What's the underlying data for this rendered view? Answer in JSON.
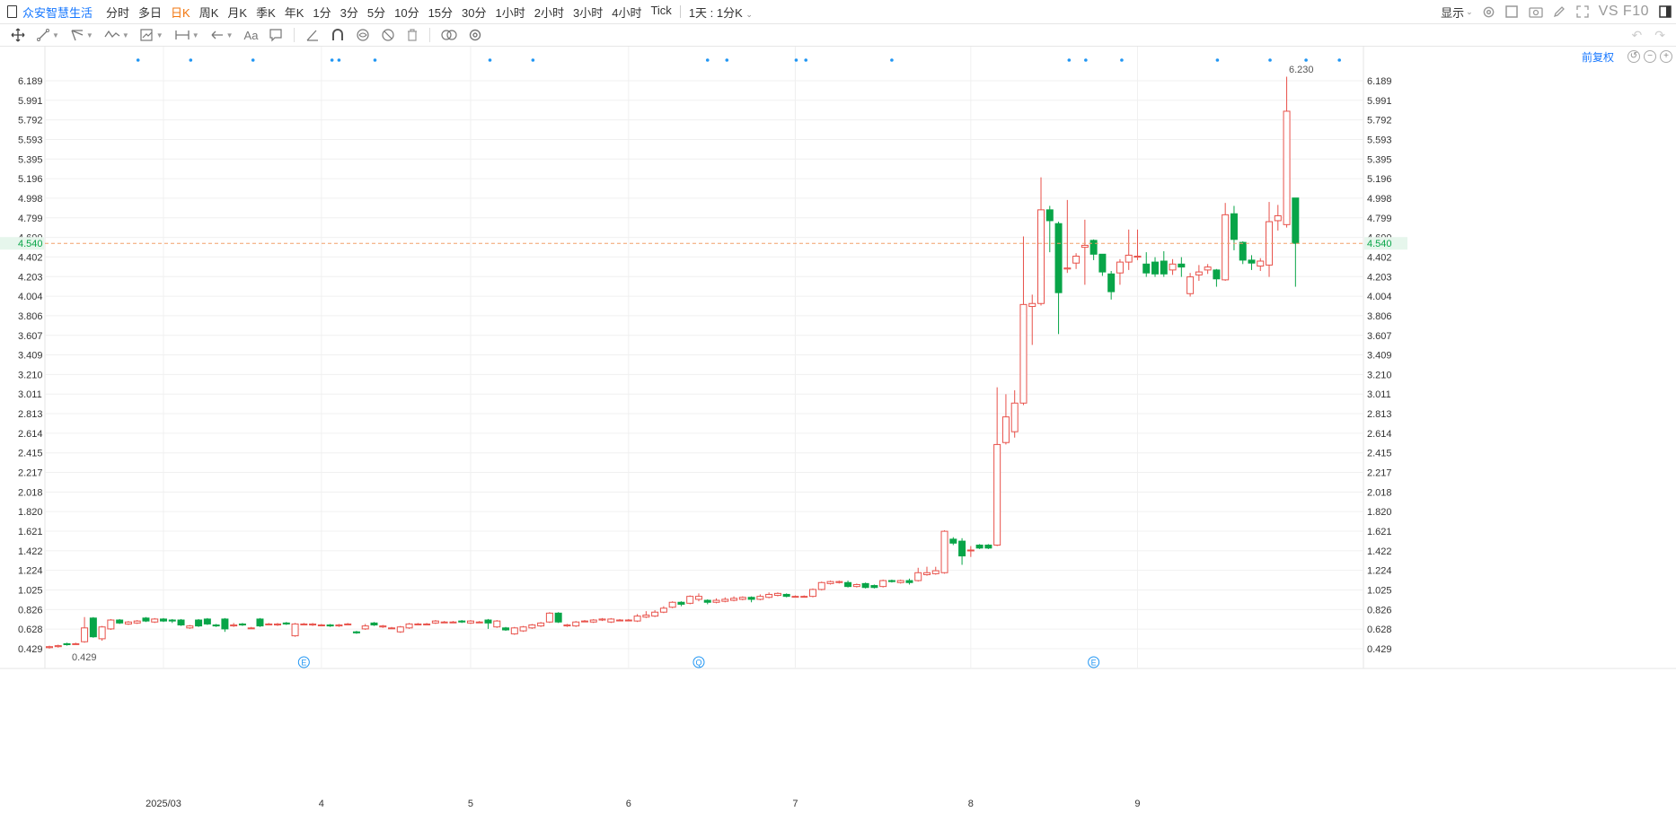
{
  "toolbar": {
    "stock_name": "众安智慧生活",
    "periods": [
      "分时",
      "多日",
      "日K",
      "周K",
      "月K",
      "季K",
      "年K",
      "1分",
      "3分",
      "5分",
      "10分",
      "15分",
      "30分",
      "1小时",
      "2小时",
      "3小时",
      "4小时",
      "Tick"
    ],
    "active_period": "日K",
    "custom_period": "1天 : 1分K",
    "display_label": "显示",
    "vs_label": "VS F10"
  },
  "chart_header": {
    "adjust_label": "前复权"
  },
  "colors": {
    "up": "#e8514a",
    "down": "#08a548",
    "current_price_line": "#f2a06a",
    "current_price_bg": "#e6f6ec",
    "current_price_text": "#08a548",
    "marker": "#2196f3"
  },
  "chart_data": {
    "type": "candlestick",
    "current_price": "4.540",
    "max_label": "6.230",
    "min_label": "0.429",
    "y_ticks": [
      "6.189",
      "5.991",
      "5.792",
      "5.593",
      "5.395",
      "5.196",
      "4.998",
      "4.799",
      "4.600",
      "4.402",
      "4.203",
      "4.004",
      "3.806",
      "3.607",
      "3.409",
      "3.210",
      "3.011",
      "2.813",
      "2.614",
      "2.415",
      "2.217",
      "2.018",
      "1.820",
      "1.621",
      "1.422",
      "1.224",
      "1.025",
      "0.826",
      "0.628",
      "0.429"
    ],
    "ylim": [
      0.38,
      6.42
    ],
    "x_labels": [
      {
        "label": "2025/03",
        "index": 13
      },
      {
        "label": "4",
        "index": 31
      },
      {
        "label": "5",
        "index": 48
      },
      {
        "label": "6",
        "index": 66
      },
      {
        "label": "7",
        "index": 85
      },
      {
        "label": "8",
        "index": 105
      },
      {
        "label": "9",
        "index": 124
      }
    ],
    "event_markers": [
      {
        "index": 29,
        "label": "E"
      },
      {
        "index": 74,
        "label": "Q"
      },
      {
        "index": 119,
        "label": "E"
      }
    ],
    "candles": [
      [
        0.44,
        0.45,
        0.43,
        0.46
      ],
      [
        0.45,
        0.46,
        0.44,
        0.47
      ],
      [
        0.48,
        0.47,
        0.46,
        0.49
      ],
      [
        0.48,
        0.48,
        0.47,
        0.49
      ],
      [
        0.5,
        0.64,
        0.49,
        0.75
      ],
      [
        0.74,
        0.55,
        0.54,
        0.75
      ],
      [
        0.53,
        0.65,
        0.51,
        0.66
      ],
      [
        0.63,
        0.72,
        0.62,
        0.73
      ],
      [
        0.72,
        0.69,
        0.68,
        0.73
      ],
      [
        0.68,
        0.7,
        0.67,
        0.71
      ],
      [
        0.69,
        0.71,
        0.68,
        0.72
      ],
      [
        0.74,
        0.71,
        0.7,
        0.75
      ],
      [
        0.7,
        0.73,
        0.69,
        0.74
      ],
      [
        0.73,
        0.71,
        0.7,
        0.74
      ],
      [
        0.72,
        0.71,
        0.69,
        0.73
      ],
      [
        0.72,
        0.67,
        0.66,
        0.73
      ],
      [
        0.64,
        0.66,
        0.63,
        0.67
      ],
      [
        0.72,
        0.66,
        0.65,
        0.73
      ],
      [
        0.73,
        0.68,
        0.67,
        0.74
      ],
      [
        0.67,
        0.66,
        0.65,
        0.68
      ],
      [
        0.73,
        0.63,
        0.6,
        0.74
      ],
      [
        0.66,
        0.67,
        0.65,
        0.69
      ],
      [
        0.68,
        0.67,
        0.66,
        0.69
      ],
      [
        0.64,
        0.64,
        0.63,
        0.65
      ],
      [
        0.73,
        0.66,
        0.65,
        0.74
      ],
      [
        0.68,
        0.68,
        0.67,
        0.69
      ],
      [
        0.67,
        0.68,
        0.66,
        0.69
      ],
      [
        0.69,
        0.68,
        0.67,
        0.7
      ],
      [
        0.56,
        0.68,
        0.55,
        0.69
      ],
      [
        0.68,
        0.68,
        0.67,
        0.69
      ],
      [
        0.67,
        0.68,
        0.66,
        0.69
      ],
      [
        0.67,
        0.67,
        0.66,
        0.68
      ],
      [
        0.67,
        0.66,
        0.65,
        0.68
      ],
      [
        0.66,
        0.67,
        0.65,
        0.68
      ],
      [
        0.68,
        0.68,
        0.67,
        0.69
      ],
      [
        0.6,
        0.59,
        0.58,
        0.61
      ],
      [
        0.63,
        0.66,
        0.62,
        0.68
      ],
      [
        0.69,
        0.67,
        0.66,
        0.7
      ],
      [
        0.65,
        0.66,
        0.64,
        0.67
      ],
      [
        0.64,
        0.64,
        0.63,
        0.65
      ],
      [
        0.6,
        0.65,
        0.59,
        0.66
      ],
      [
        0.64,
        0.68,
        0.63,
        0.69
      ],
      [
        0.68,
        0.68,
        0.67,
        0.69
      ],
      [
        0.68,
        0.68,
        0.67,
        0.69
      ],
      [
        0.69,
        0.71,
        0.68,
        0.72
      ],
      [
        0.7,
        0.7,
        0.69,
        0.71
      ],
      [
        0.7,
        0.7,
        0.69,
        0.71
      ],
      [
        0.71,
        0.7,
        0.69,
        0.72
      ],
      [
        0.69,
        0.71,
        0.68,
        0.72
      ],
      [
        0.7,
        0.7,
        0.69,
        0.71
      ],
      [
        0.72,
        0.69,
        0.63,
        0.73
      ],
      [
        0.65,
        0.71,
        0.64,
        0.72
      ],
      [
        0.64,
        0.62,
        0.61,
        0.65
      ],
      [
        0.58,
        0.64,
        0.57,
        0.65
      ],
      [
        0.61,
        0.65,
        0.6,
        0.66
      ],
      [
        0.64,
        0.67,
        0.63,
        0.68
      ],
      [
        0.66,
        0.69,
        0.65,
        0.7
      ],
      [
        0.7,
        0.79,
        0.69,
        0.8
      ],
      [
        0.79,
        0.7,
        0.69,
        0.8
      ],
      [
        0.66,
        0.67,
        0.65,
        0.68
      ],
      [
        0.66,
        0.7,
        0.65,
        0.71
      ],
      [
        0.71,
        0.71,
        0.7,
        0.72
      ],
      [
        0.7,
        0.72,
        0.69,
        0.73
      ],
      [
        0.72,
        0.73,
        0.71,
        0.74
      ],
      [
        0.7,
        0.73,
        0.69,
        0.74
      ],
      [
        0.72,
        0.72,
        0.71,
        0.73
      ],
      [
        0.72,
        0.72,
        0.71,
        0.73
      ],
      [
        0.71,
        0.76,
        0.7,
        0.78
      ],
      [
        0.75,
        0.77,
        0.74,
        0.81
      ],
      [
        0.76,
        0.8,
        0.75,
        0.82
      ],
      [
        0.8,
        0.84,
        0.79,
        0.86
      ],
      [
        0.85,
        0.9,
        0.84,
        0.91
      ],
      [
        0.9,
        0.88,
        0.86,
        0.91
      ],
      [
        0.89,
        0.96,
        0.88,
        0.97
      ],
      [
        0.93,
        0.96,
        0.91,
        0.99
      ],
      [
        0.92,
        0.9,
        0.88,
        0.93
      ],
      [
        0.9,
        0.92,
        0.89,
        0.94
      ],
      [
        0.91,
        0.93,
        0.9,
        0.95
      ],
      [
        0.92,
        0.94,
        0.91,
        0.96
      ],
      [
        0.93,
        0.95,
        0.92,
        0.96
      ],
      [
        0.95,
        0.93,
        0.9,
        0.96
      ],
      [
        0.93,
        0.96,
        0.92,
        0.98
      ],
      [
        0.95,
        0.98,
        0.94,
        1.0
      ],
      [
        0.97,
        0.99,
        0.96,
        1.0
      ],
      [
        0.98,
        0.96,
        0.95,
        0.99
      ],
      [
        0.96,
        0.96,
        0.95,
        0.97
      ],
      [
        0.96,
        0.96,
        0.95,
        0.97
      ],
      [
        0.96,
        1.03,
        0.95,
        1.04
      ],
      [
        1.03,
        1.1,
        1.02,
        1.11
      ],
      [
        1.09,
        1.11,
        1.08,
        1.12
      ],
      [
        1.1,
        1.11,
        1.09,
        1.12
      ],
      [
        1.1,
        1.06,
        1.05,
        1.12
      ],
      [
        1.06,
        1.08,
        1.05,
        1.09
      ],
      [
        1.09,
        1.05,
        1.04,
        1.1
      ],
      [
        1.07,
        1.05,
        1.04,
        1.08
      ],
      [
        1.06,
        1.12,
        1.05,
        1.13
      ],
      [
        1.12,
        1.11,
        1.1,
        1.13
      ],
      [
        1.1,
        1.12,
        1.09,
        1.13
      ],
      [
        1.12,
        1.1,
        1.08,
        1.14
      ],
      [
        1.12,
        1.2,
        1.11,
        1.25
      ],
      [
        1.18,
        1.2,
        1.17,
        1.26
      ],
      [
        1.19,
        1.22,
        1.18,
        1.26
      ],
      [
        1.2,
        1.62,
        1.19,
        1.63
      ],
      [
        1.54,
        1.5,
        1.48,
        1.56
      ],
      [
        1.52,
        1.37,
        1.28,
        1.55
      ],
      [
        1.43,
        1.43,
        1.36,
        1.47
      ],
      [
        1.48,
        1.45,
        1.44,
        1.49
      ],
      [
        1.48,
        1.45,
        1.44,
        1.49
      ],
      [
        1.48,
        2.5,
        1.47,
        3.08
      ],
      [
        2.52,
        2.78,
        2.5,
        3.01
      ],
      [
        2.63,
        2.92,
        2.57,
        3.05
      ],
      [
        2.92,
        3.92,
        2.9,
        4.61
      ],
      [
        3.9,
        3.93,
        3.51,
        4.02
      ],
      [
        3.93,
        4.88,
        3.91,
        5.21
      ],
      [
        4.88,
        4.77,
        4.45,
        4.92
      ],
      [
        4.74,
        4.04,
        3.62,
        4.76
      ],
      [
        4.28,
        4.29,
        4.24,
        4.98
      ],
      [
        4.34,
        4.41,
        4.28,
        4.44
      ],
      [
        4.5,
        4.52,
        4.12,
        4.78
      ],
      [
        4.57,
        4.43,
        4.37,
        4.58
      ],
      [
        4.43,
        4.25,
        4.21,
        4.43
      ],
      [
        4.23,
        4.05,
        3.97,
        4.26
      ],
      [
        4.24,
        4.35,
        4.12,
        4.38
      ],
      [
        4.35,
        4.42,
        4.27,
        4.68
      ],
      [
        4.4,
        4.41,
        4.37,
        4.68
      ],
      [
        4.33,
        4.24,
        4.2,
        4.45
      ],
      [
        4.35,
        4.23,
        4.2,
        4.4
      ],
      [
        4.36,
        4.23,
        4.2,
        4.46
      ],
      [
        4.27,
        4.33,
        4.22,
        4.38
      ],
      [
        4.33,
        4.3,
        4.2,
        4.4
      ],
      [
        4.03,
        4.2,
        4.0,
        4.24
      ],
      [
        4.22,
        4.25,
        4.16,
        4.32
      ],
      [
        4.27,
        4.3,
        4.23,
        4.33
      ],
      [
        4.27,
        4.18,
        4.1,
        4.28
      ],
      [
        4.17,
        4.83,
        4.16,
        4.95
      ],
      [
        4.84,
        4.58,
        4.47,
        4.92
      ],
      [
        4.55,
        4.37,
        4.33,
        4.56
      ],
      [
        4.37,
        4.34,
        4.27,
        4.42
      ],
      [
        4.31,
        4.36,
        4.26,
        4.39
      ],
      [
        4.32,
        4.76,
        4.2,
        4.96
      ],
      [
        4.77,
        4.82,
        4.67,
        4.93
      ],
      [
        4.73,
        5.88,
        4.7,
        6.23
      ],
      [
        5.0,
        4.54,
        4.1,
        5.0
      ]
    ]
  }
}
